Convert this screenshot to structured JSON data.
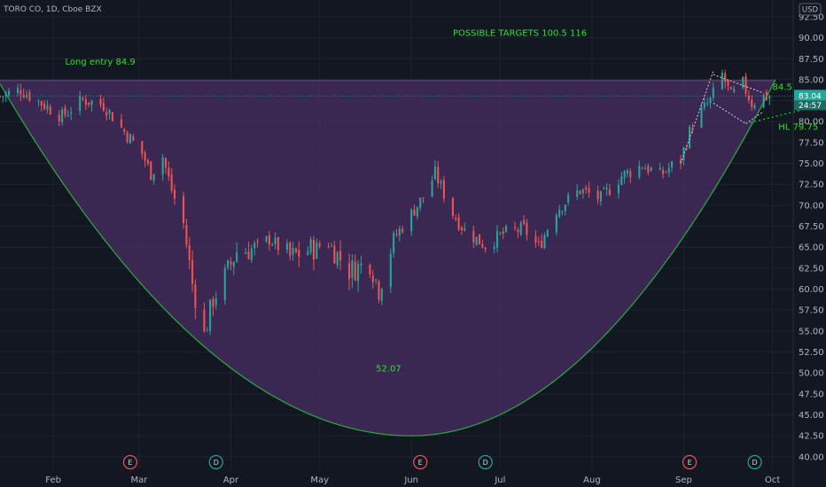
{
  "header": {
    "symbol_title": "TORO CO, 1D, Cboe BZX"
  },
  "currency_button": "USD",
  "colors": {
    "background": "#131722",
    "grid": "#1f2330",
    "up_candle": "#26a69a",
    "down_candle": "#ef5350",
    "cup_fill": "#432c5a",
    "cup_line": "#2ea043",
    "annotation_text": "#2ce02c",
    "dashed_lines": "#c0c3cc",
    "price_tag": "#26a69a",
    "earnings_badge": "#ef5350",
    "dividend_badge": "#26a69a"
  },
  "chart_data": {
    "type": "candlestick",
    "title": "TORO CO, 1D, Cboe BZX",
    "x_range": [
      "2020-01-14",
      "2020-10-08"
    ],
    "ylim": [
      38.5,
      94.5
    ],
    "grid": true,
    "x_ticks": [
      {
        "label": "Feb",
        "date": "2020-02-01"
      },
      {
        "label": "Mar",
        "date": "2020-03-01"
      },
      {
        "label": "Apr",
        "date": "2020-04-01"
      },
      {
        "label": "May",
        "date": "2020-05-01"
      },
      {
        "label": "Jun",
        "date": "2020-06-01"
      },
      {
        "label": "Jul",
        "date": "2020-07-01"
      },
      {
        "label": "Aug",
        "date": "2020-08-01"
      },
      {
        "label": "Sep",
        "date": "2020-09-01"
      },
      {
        "label": "Oct",
        "date": "2020-10-01"
      }
    ],
    "y_ticks": [
      "92.50",
      "90.00",
      "87.50",
      "85.00",
      "82.50",
      "80.00",
      "77.50",
      "75.00",
      "72.50",
      "70.00",
      "67.50",
      "65.00",
      "62.50",
      "60.00",
      "57.50",
      "55.00",
      "52.50",
      "50.00",
      "47.50",
      "45.00",
      "42.50",
      "40.00"
    ],
    "keypoints": [
      [
        "2020-01-14",
        83.0
      ],
      [
        "2020-01-21",
        83.8
      ],
      [
        "2020-01-28",
        82.2
      ],
      [
        "2020-02-04",
        80.6
      ],
      [
        "2020-02-11",
        82.6
      ],
      [
        "2020-02-18",
        82.0
      ],
      [
        "2020-02-25",
        78.8
      ],
      [
        "2020-03-02",
        76.2
      ],
      [
        "2020-03-05",
        73.8
      ],
      [
        "2020-03-09",
        75.8
      ],
      [
        "2020-03-12",
        71.8
      ],
      [
        "2020-03-16",
        67.8
      ],
      [
        "2020-03-19",
        60.6
      ],
      [
        "2020-03-23",
        54.5
      ],
      [
        "2020-03-26",
        58.8
      ],
      [
        "2020-03-30",
        61.5
      ],
      [
        "2020-04-03",
        64.5
      ],
      [
        "2020-04-09",
        64.8
      ],
      [
        "2020-04-14",
        66.0
      ],
      [
        "2020-04-21",
        63.8
      ],
      [
        "2020-04-28",
        64.8
      ],
      [
        "2020-05-04",
        65.5
      ],
      [
        "2020-05-11",
        62.2
      ],
      [
        "2020-05-18",
        63.2
      ],
      [
        "2020-05-21",
        60.0
      ],
      [
        "2020-05-26",
        66.0
      ],
      [
        "2020-06-01",
        69.0
      ],
      [
        "2020-06-05",
        71.0
      ],
      [
        "2020-06-09",
        73.8
      ],
      [
        "2020-06-15",
        69.0
      ],
      [
        "2020-06-19",
        67.0
      ],
      [
        "2020-06-26",
        65.2
      ],
      [
        "2020-07-02",
        66.6
      ],
      [
        "2020-07-09",
        67.2
      ],
      [
        "2020-07-14",
        65.0
      ],
      [
        "2020-07-20",
        69.5
      ],
      [
        "2020-07-28",
        71.8
      ],
      [
        "2020-08-04",
        70.8
      ],
      [
        "2020-08-11",
        73.5
      ],
      [
        "2020-08-18",
        74.8
      ],
      [
        "2020-08-24",
        73.6
      ],
      [
        "2020-08-31",
        75.5
      ],
      [
        "2020-09-04",
        79.8
      ],
      [
        "2020-09-10",
        82.5
      ],
      [
        "2020-09-14",
        85.6
      ],
      [
        "2020-09-17",
        83.0
      ],
      [
        "2020-09-21",
        84.5
      ],
      [
        "2020-09-24",
        82.2
      ],
      [
        "2020-09-28",
        83.0
      ],
      [
        "2020-09-30",
        83.04
      ]
    ],
    "cup_curve": {
      "left": [
        "2020-01-14",
        84.5
      ],
      "bottom": [
        "2020-06-01",
        42.5
      ],
      "right": [
        "2020-10-02",
        85.0
      ]
    },
    "resistance_level": 84.9,
    "last_price": 83.04,
    "price_tag": "83.04",
    "countdown_tag": "24:57",
    "annotations": [
      {
        "text": "Long entry 84.9",
        "date": "2020-02-05",
        "price": 86.8
      },
      {
        "text": "POSSIBLE TARGETS   100.5  116",
        "date": "2020-06-15",
        "price": 90.2
      },
      {
        "text": "52.07",
        "date": "2020-05-20",
        "price": 50.2
      },
      {
        "text": "HL 79.75",
        "date": "2020-10-03",
        "price": 79.0
      },
      {
        "text": "84.5",
        "date": "2020-10-01",
        "price": 83.8
      }
    ],
    "pennant": {
      "upper": [
        [
          "2020-09-11",
          85.6
        ],
        [
          "2020-09-28",
          83.4
        ]
      ],
      "lower": [
        [
          "2020-09-11",
          82.2
        ],
        [
          "2020-09-22",
          79.75
        ],
        [
          "2020-09-28",
          81.2
        ]
      ],
      "rally": [
        [
          "2020-08-31",
          75.0
        ],
        [
          "2020-09-11",
          86.0
        ]
      ],
      "hl_projection": [
        [
          "2020-09-22",
          79.75
        ],
        [
          "2020-10-17",
          81.9
        ]
      ]
    },
    "events": [
      {
        "label": "E",
        "type": "earnings",
        "date": "2020-02-27"
      },
      {
        "label": "D",
        "type": "dividend",
        "date": "2020-03-27"
      },
      {
        "label": "E",
        "type": "earnings",
        "date": "2020-06-04"
      },
      {
        "label": "D",
        "type": "dividend",
        "date": "2020-06-26"
      },
      {
        "label": "E",
        "type": "earnings",
        "date": "2020-09-03"
      },
      {
        "label": "D",
        "type": "dividend",
        "date": "2020-09-25"
      }
    ]
  }
}
